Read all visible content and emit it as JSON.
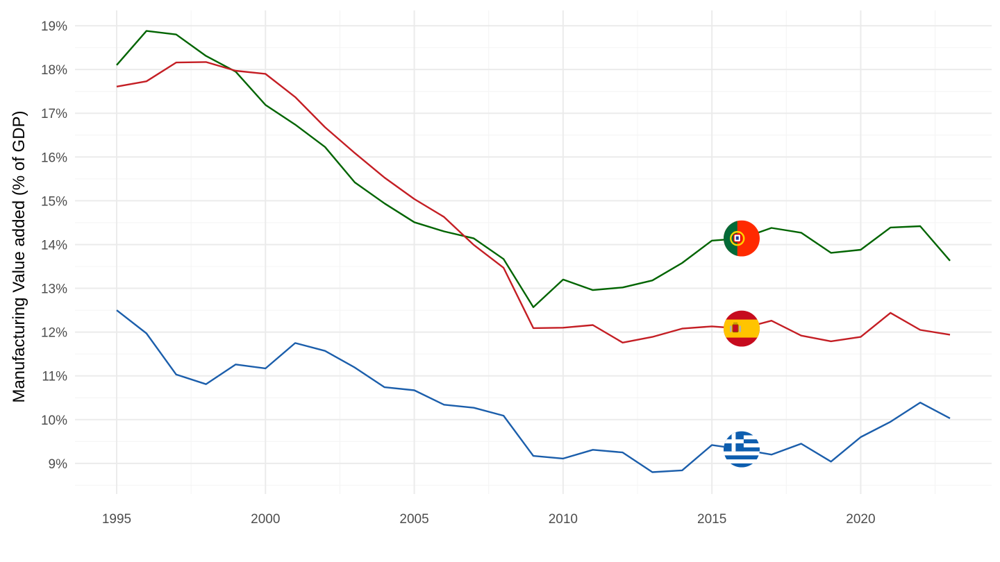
{
  "chart_data": {
    "type": "line",
    "title": "",
    "xlabel": "",
    "ylabel": "Manufacturing Value added (% of GDP)",
    "xlim": [
      1993.6,
      2024.4
    ],
    "ylim": [
      8.3,
      19.35
    ],
    "x_ticks": [
      1995,
      2000,
      2005,
      2010,
      2015,
      2020
    ],
    "x_tick_labels": [
      "1995",
      "2000",
      "2005",
      "2010",
      "2015",
      "2020"
    ],
    "y_ticks": [
      9,
      10,
      11,
      12,
      13,
      14,
      15,
      16,
      17,
      18,
      19
    ],
    "y_tick_labels": [
      "9%",
      "10%",
      "11%",
      "12%",
      "13%",
      "14%",
      "15%",
      "16%",
      "17%",
      "18%",
      "19%"
    ],
    "grid": true,
    "legend": "none",
    "flag_marker_year": 2016,
    "x": [
      1995,
      1996,
      1997,
      1998,
      1999,
      2000,
      2001,
      2002,
      2003,
      2004,
      2005,
      2006,
      2007,
      2008,
      2009,
      2010,
      2011,
      2012,
      2013,
      2014,
      2015,
      2016,
      2017,
      2018,
      2019,
      2020,
      2021,
      2022,
      2023
    ],
    "series": [
      {
        "flag": "portugal",
        "color": "#006400",
        "values": [
          18.1,
          18.88,
          18.8,
          18.31,
          17.95,
          17.19,
          16.74,
          16.23,
          15.42,
          14.94,
          14.51,
          14.3,
          14.14,
          13.67,
          12.57,
          13.2,
          12.96,
          13.02,
          13.18,
          13.58,
          14.09,
          14.14,
          14.38,
          14.27,
          13.81,
          13.88,
          14.39,
          14.42,
          13.63
        ]
      },
      {
        "flag": "spain",
        "color": "#c41e24",
        "values": [
          17.61,
          17.73,
          18.16,
          18.17,
          17.97,
          17.9,
          17.37,
          16.68,
          16.09,
          15.53,
          15.04,
          14.63,
          13.99,
          13.47,
          12.09,
          12.1,
          12.16,
          11.76,
          11.89,
          12.08,
          12.13,
          12.08,
          12.26,
          11.92,
          11.79,
          11.89,
          12.44,
          12.05,
          11.94
        ]
      },
      {
        "flag": "greece",
        "color": "#1b5eab",
        "values": [
          12.5,
          11.97,
          11.03,
          10.81,
          11.26,
          11.17,
          11.75,
          11.57,
          11.19,
          10.74,
          10.67,
          10.34,
          10.27,
          10.09,
          9.17,
          9.11,
          9.31,
          9.25,
          8.8,
          8.84,
          9.42,
          9.32,
          9.2,
          9.45,
          9.04,
          9.6,
          9.95,
          10.39,
          10.03
        ]
      }
    ]
  },
  "colors": {
    "grid_major": "#ebebeb",
    "grid_minor": "#f4f4f4",
    "tick_text": "#4d4d4d"
  }
}
